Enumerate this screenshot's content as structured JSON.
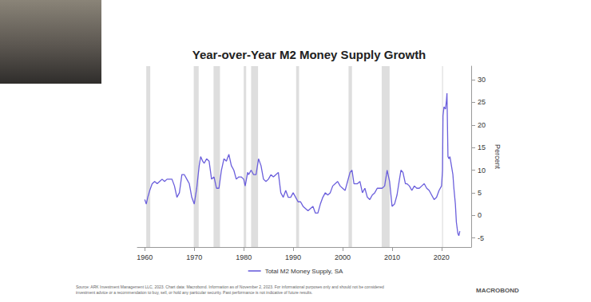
{
  "chart_data": {
    "type": "line",
    "title": "Year-over-Year M2 Money Supply Growth",
    "y_label": "Percent",
    "x": [
      1960.0,
      1960.3,
      1960.6,
      1961.0,
      1961.5,
      1962.0,
      1962.5,
      1963.0,
      1963.5,
      1964.0,
      1964.5,
      1965.0,
      1965.5,
      1966.0,
      1966.5,
      1967.0,
      1967.5,
      1968.0,
      1968.5,
      1969.0,
      1969.5,
      1970.0,
      1970.5,
      1971.0,
      1971.3,
      1971.7,
      1972.0,
      1972.5,
      1973.0,
      1973.5,
      1974.0,
      1974.5,
      1975.0,
      1975.5,
      1976.0,
      1976.5,
      1977.0,
      1977.5,
      1978.0,
      1978.5,
      1979.0,
      1979.5,
      1980.0,
      1980.3,
      1980.8,
      1981.0,
      1981.5,
      1982.0,
      1982.5,
      1983.0,
      1983.5,
      1984.0,
      1984.5,
      1985.0,
      1985.5,
      1986.0,
      1986.5,
      1987.0,
      1987.5,
      1988.0,
      1988.5,
      1989.0,
      1989.5,
      1990.0,
      1990.5,
      1991.0,
      1991.5,
      1992.0,
      1992.5,
      1993.0,
      1993.5,
      1994.0,
      1994.5,
      1995.0,
      1995.5,
      1996.0,
      1996.5,
      1997.0,
      1997.5,
      1998.0,
      1998.5,
      1999.0,
      1999.5,
      2000.0,
      2000.5,
      2001.0,
      2001.5,
      2001.9,
      2002.3,
      2002.7,
      2003.0,
      2003.5,
      2004.0,
      2004.5,
      2005.0,
      2005.5,
      2006.0,
      2006.5,
      2007.0,
      2007.5,
      2008.0,
      2008.5,
      2009.0,
      2009.5,
      2010.0,
      2010.5,
      2011.0,
      2011.5,
      2011.8,
      2012.2,
      2012.7,
      2013.0,
      2013.5,
      2014.0,
      2014.5,
      2015.0,
      2015.5,
      2016.0,
      2016.5,
      2017.0,
      2017.5,
      2018.0,
      2018.5,
      2019.0,
      2019.5,
      2020.0,
      2020.2,
      2020.3,
      2020.5,
      2020.8,
      2021.0,
      2021.1,
      2021.3,
      2021.5,
      2021.7,
      2022.0,
      2022.3,
      2022.5,
      2022.8,
      2023.0,
      2023.3,
      2023.5,
      2023.7
    ],
    "series": [
      {
        "name": "Total M2 Money Supply, SA",
        "color": "#6b5fdc",
        "values": [
          3.5,
          2.5,
          4,
          5.5,
          7,
          7.5,
          7,
          7.5,
          8,
          7.5,
          8,
          8,
          8,
          6.5,
          4,
          5,
          9,
          9,
          8,
          7,
          4,
          2.5,
          6,
          11,
          13,
          12,
          11.5,
          12.5,
          12,
          8,
          8.5,
          6,
          6,
          10,
          12.5,
          12,
          13.5,
          11,
          10,
          8,
          8.5,
          8.5,
          8,
          6.5,
          9.5,
          9,
          10,
          9,
          9,
          12.5,
          11,
          8,
          7.5,
          8,
          9,
          8.5,
          9,
          9.5,
          5,
          4,
          5.5,
          4,
          4,
          5,
          4,
          3,
          3,
          2,
          1.5,
          1,
          1.5,
          2,
          0.5,
          0.5,
          2.5,
          4,
          5,
          4.5,
          5,
          6.5,
          7,
          7.5,
          6.5,
          6,
          5.5,
          7.5,
          9.5,
          10,
          7,
          7,
          7,
          7.5,
          5,
          6,
          4,
          3.5,
          4.5,
          5,
          6,
          6,
          6,
          6.5,
          10,
          7.5,
          2,
          2.5,
          4.5,
          8,
          10,
          9.5,
          7,
          7,
          6.5,
          5.5,
          6.5,
          6,
          6,
          6.5,
          7,
          6,
          5.5,
          4.5,
          3.5,
          4,
          5.5,
          6.5,
          10,
          22,
          24,
          23.5,
          25.5,
          27,
          13,
          12.5,
          13,
          11,
          9,
          6,
          2.5,
          -1.5,
          -4,
          -4.5,
          -3.5
        ]
      }
    ],
    "recessions": [
      [
        1960.3,
        1961.1
      ],
      [
        1969.9,
        1970.9
      ],
      [
        1973.9,
        1975.2
      ],
      [
        1980.0,
        1980.5
      ],
      [
        1981.5,
        1982.9
      ],
      [
        1990.6,
        1991.2
      ],
      [
        2001.2,
        2001.9
      ],
      [
        2007.9,
        2009.5
      ],
      [
        2020.1,
        2020.3
      ]
    ],
    "xlim": [
      1958.5,
      2026
    ],
    "xticks": [
      1960,
      1970,
      1980,
      1990,
      2000,
      2010,
      2020
    ],
    "ylim": [
      -7,
      33
    ],
    "yticks": [
      -5,
      0,
      5,
      10,
      15,
      20,
      25,
      30
    ],
    "grid": false,
    "legend": "bottom",
    "source": [
      "Source: ARK Investment Management LLC, 2023. Chart data: Macrobond. Information as of November 2, 2023. For informational purposes only and should not be considered",
      "investment advice or a recommendation to buy, sell, or hold any particular security. Past performance is not indicative of future results."
    ],
    "logo": "MACROBOND"
  }
}
